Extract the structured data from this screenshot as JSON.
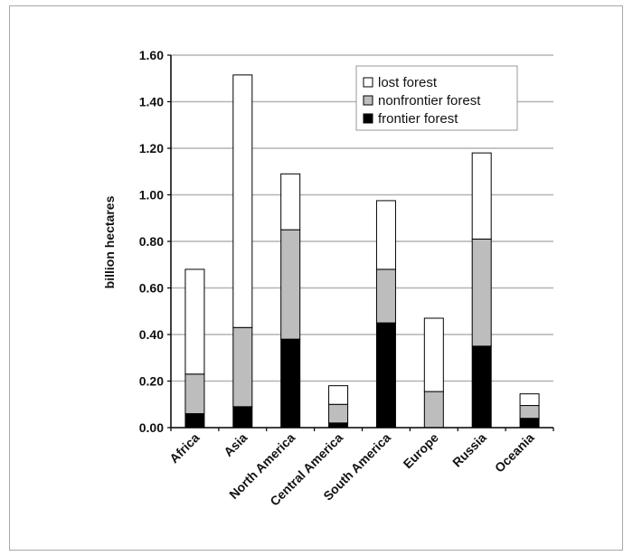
{
  "chart_data": {
    "type": "bar",
    "stacked": true,
    "categories": [
      "Africa",
      "Asia",
      "North America",
      "Central America",
      "South America",
      "Europe",
      "Russia",
      "Oceania"
    ],
    "series": [
      {
        "name": "frontier forest",
        "color": "#000000",
        "values": [
          0.06,
          0.09,
          0.38,
          0.02,
          0.45,
          0.0,
          0.35,
          0.04
        ]
      },
      {
        "name": "nonfrontier forest",
        "color": "#bdbdbd",
        "values": [
          0.17,
          0.34,
          0.47,
          0.08,
          0.23,
          0.155,
          0.46,
          0.055
        ]
      },
      {
        "name": "lost forest",
        "color": "#ffffff",
        "values": [
          0.45,
          1.085,
          0.24,
          0.08,
          0.295,
          0.315,
          0.37,
          0.05
        ]
      }
    ],
    "ylabel": "billion hectares",
    "ylim": [
      0,
      1.6
    ],
    "yticks": [
      "0.00",
      "0.20",
      "0.40",
      "0.60",
      "0.80",
      "1.00",
      "1.20",
      "1.40",
      "1.60"
    ],
    "grid": true,
    "legend_position": "top-right",
    "legend_order": [
      "lost forest",
      "nonfrontier forest",
      "frontier forest"
    ]
  }
}
